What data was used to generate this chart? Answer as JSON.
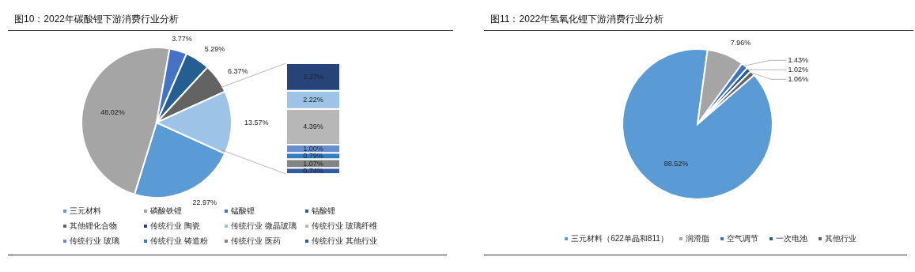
{
  "chart_data": [
    {
      "type": "pie",
      "title": "图10：2022年碳酸锂下游消费行业分析",
      "categories": [
        "三元材料",
        "磷酸铁锂",
        "锰酸锂",
        "钴酸锂",
        "其他锂化合物",
        null
      ],
      "values": [
        22.97,
        48.02,
        3.77,
        5.29,
        6.37,
        13.57
      ],
      "colors": [
        "#5b9bd5",
        "#a5a5a5",
        "#4472c4",
        "#255e91",
        "#636363",
        "#9dc3e6"
      ],
      "value_labels": [
        "22.97%",
        "48.02%",
        "3.77%",
        "5.29%",
        "6.37%",
        "13.57%"
      ],
      "legend": "bottom"
    },
    {
      "type": "bar",
      "stacked": true,
      "categories": [
        null
      ],
      "legend": "bottom",
      "series": [
        {
          "name": "传统行业 其他行业",
          "color": "#335aa1",
          "values": [
            0.74
          ],
          "value_labels": [
            "0.74%"
          ]
        },
        {
          "name": "传统行业 医药",
          "color": "#848484",
          "values": [
            1.07
          ],
          "value_labels": [
            "1.07%"
          ]
        },
        {
          "name": "传统行业 铸造粉",
          "color": "#327dc2",
          "values": [
            0.79
          ],
          "value_labels": [
            "0.79%"
          ]
        },
        {
          "name": "传统行业 玻璃",
          "color": "#698ed0",
          "values": [
            1.0
          ],
          "value_labels": [
            "1.00%"
          ]
        },
        {
          "name": "传统行业 玻璃纤维",
          "color": "#b7b7b7",
          "values": [
            4.39
          ],
          "value_labels": [
            "4.39%"
          ]
        },
        {
          "name": "传统行业 微晶玻璃",
          "color": "#9dc3e6",
          "values": [
            2.22
          ],
          "value_labels": [
            "2.22%"
          ]
        },
        {
          "name": "传统行业 陶瓷",
          "color": "#264478",
          "values": [
            3.37
          ],
          "value_labels": [
            "3.37%"
          ]
        }
      ]
    },
    {
      "type": "pie",
      "title": "图11：2022年氢氧化锂下游消费行业分析",
      "categories": [
        "三元材料（622单晶和811）",
        "润滑脂",
        "空气调节",
        "一次电池",
        "其他行业"
      ],
      "values": [
        88.52,
        7.96,
        1.43,
        1.02,
        1.06
      ],
      "colors": [
        "#5b9bd5",
        "#a5a5a5",
        "#4472c4",
        "#255e91",
        "#636363"
      ],
      "value_labels": [
        "88.52%",
        "7.96%",
        "1.43%",
        "1.02%",
        "1.06%"
      ],
      "legend": "bottom"
    }
  ]
}
